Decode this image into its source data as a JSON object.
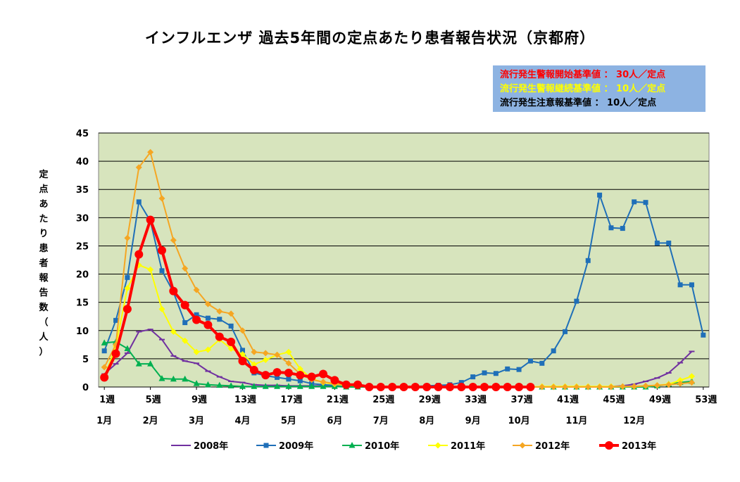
{
  "chart_data": {
    "type": "line",
    "title": "インフルエンザ 過去5年間の定点あたり患者報告状況（京都府）",
    "ylabel": "定点あたり患者報告数（人）",
    "ylim": [
      0,
      45
    ],
    "yticks": [
      "0",
      "5",
      "10",
      "15",
      "20",
      "25",
      "30",
      "35",
      "40",
      "45"
    ],
    "x_week_ticks": [
      "1週",
      "5週",
      "9週",
      "13週",
      "17週",
      "21週",
      "25週",
      "29週",
      "33週",
      "37週",
      "41週",
      "45週",
      "49週",
      "53週"
    ],
    "x_week_tick_values": [
      1,
      5,
      9,
      13,
      17,
      21,
      25,
      29,
      33,
      37,
      41,
      45,
      49,
      53
    ],
    "x_month_ticks": [
      "1月",
      "2月",
      "3月",
      "4月",
      "5月",
      "6月",
      "7月",
      "8月",
      "9月",
      "10月",
      "11月",
      "12月"
    ],
    "x_month_tick_values": [
      1,
      5,
      9,
      13,
      17,
      21,
      25,
      29,
      33,
      37,
      42,
      47
    ],
    "grid": true,
    "legend_position": "bottom",
    "thresholds": [
      {
        "text": "流行発生警報開始基準値 ： 30人／定点",
        "color": "#ff0000"
      },
      {
        "text": "流行発生警報継続基準値 ： 10人／定点",
        "color": "#ffff00"
      },
      {
        "text": "流行発生注意報基準値 ： 10人／定点",
        "color": "#000000"
      }
    ],
    "series": [
      {
        "name": "2008年",
        "color": "#7030a0",
        "marker": "dash",
        "width": 2,
        "x": [
          1,
          2,
          3,
          4,
          5,
          6,
          7,
          8,
          9,
          10,
          11,
          12,
          13,
          14,
          15,
          16,
          17,
          18,
          19,
          20,
          21,
          22,
          23,
          24,
          25,
          26,
          27,
          28,
          29,
          30,
          31,
          32,
          33,
          34,
          35,
          36,
          37,
          38,
          39,
          40,
          41,
          42,
          43,
          44,
          45,
          46,
          47,
          48,
          49,
          50,
          51,
          52
        ],
        "values": [
          2.3,
          4.1,
          6,
          9.8,
          10.2,
          8.4,
          5.5,
          4.6,
          4.2,
          2.8,
          1.8,
          1,
          0.8,
          0.4,
          0.3,
          0.3,
          0.2,
          0.2,
          0.2,
          0.2,
          0.2,
          0.1,
          0.1,
          0.1,
          0,
          0,
          0,
          0,
          0,
          0,
          0,
          0,
          0,
          0,
          0,
          0,
          0,
          0,
          0,
          0,
          0,
          0,
          0,
          0,
          0.1,
          0.2,
          0.5,
          1,
          1.6,
          2.5,
          4.3,
          6.3
        ]
      },
      {
        "name": "2009年",
        "color": "#1f6fb8",
        "marker": "square",
        "width": 2,
        "x": [
          1,
          2,
          3,
          4,
          5,
          6,
          7,
          8,
          9,
          10,
          11,
          12,
          13,
          14,
          15,
          16,
          17,
          18,
          19,
          20,
          21,
          22,
          23,
          24,
          25,
          26,
          27,
          28,
          29,
          30,
          31,
          32,
          33,
          34,
          35,
          36,
          37,
          38,
          39,
          40,
          41,
          42,
          43,
          44,
          45,
          46,
          47,
          48,
          49,
          50,
          51,
          52,
          53
        ],
        "values": [
          6.4,
          11.8,
          19.4,
          32.8,
          29.4,
          20.6,
          16.8,
          11.4,
          12.8,
          12.2,
          12,
          10.8,
          6.5,
          2.5,
          2,
          1.7,
          1.4,
          1.1,
          0.6,
          0.4,
          0.3,
          0.2,
          0.1,
          0.1,
          0.1,
          0.1,
          0.1,
          0.1,
          0.2,
          0.3,
          0.4,
          0.8,
          1.8,
          2.5,
          2.4,
          3.2,
          3.1,
          4.6,
          4.2,
          6.4,
          9.8,
          15.2,
          22.4,
          34,
          28.2,
          28.1,
          32.8,
          32.7,
          25.5,
          25.5,
          18.1,
          18.1,
          9.2
        ]
      },
      {
        "name": "2010年",
        "color": "#00b050",
        "marker": "triangle",
        "width": 2,
        "x": [
          1,
          2,
          3,
          4,
          5,
          6,
          7,
          8,
          9,
          10,
          11,
          12,
          13,
          14,
          15,
          16,
          17,
          18,
          19,
          20,
          21,
          22,
          23,
          24,
          25,
          26,
          27,
          28,
          29,
          30,
          31,
          32,
          33,
          34,
          35,
          36,
          37,
          38,
          39,
          40,
          41,
          42,
          43,
          44,
          45,
          46,
          47,
          48,
          49,
          50,
          51,
          52
        ],
        "values": [
          7.8,
          8,
          6.8,
          4.1,
          4.1,
          1.5,
          1.4,
          1.4,
          0.6,
          0.4,
          0.3,
          0.2,
          0.1,
          0.1,
          0.1,
          0.1,
          0.1,
          0.1,
          0.1,
          0.1,
          0.1,
          0,
          0,
          0,
          0,
          0,
          0,
          0,
          0,
          0,
          0,
          0,
          0,
          0,
          0,
          0,
          0,
          0,
          0,
          0,
          0,
          0,
          0,
          0,
          0,
          0,
          0,
          0,
          0.2,
          0.5,
          0.8,
          1
        ]
      },
      {
        "name": "2011年",
        "color": "#ffff00",
        "marker": "diamond",
        "width": 2,
        "x": [
          1,
          2,
          3,
          4,
          5,
          6,
          7,
          8,
          9,
          10,
          11,
          12,
          13,
          14,
          15,
          16,
          17,
          18,
          19,
          20,
          21,
          22,
          23,
          24,
          25,
          26,
          27,
          28,
          29,
          30,
          31,
          32,
          33,
          34,
          35,
          36,
          37,
          38,
          39,
          40,
          41,
          42,
          43,
          44,
          45,
          46,
          47,
          48,
          49,
          50,
          51,
          52
        ],
        "values": [
          1.8,
          7.2,
          17.5,
          21.6,
          20.8,
          13.8,
          9.8,
          8.2,
          6.2,
          6.6,
          8.4,
          6.8,
          5.8,
          4,
          4.8,
          5.7,
          6.2,
          3.2,
          1.5,
          0.8,
          0.5,
          0.3,
          0.2,
          0.1,
          0.1,
          0,
          0,
          0,
          0,
          0,
          0,
          0,
          0,
          0,
          0,
          0,
          0,
          0,
          0.1,
          0.1,
          0.1,
          0.1,
          0.1,
          0.1,
          0.1,
          0.1,
          0.1,
          0.2,
          0.3,
          0.5,
          1.2,
          1.9
        ]
      },
      {
        "name": "2012年",
        "color": "#f5a623",
        "marker": "diamond",
        "width": 2,
        "x": [
          1,
          2,
          3,
          4,
          5,
          6,
          7,
          8,
          9,
          10,
          11,
          12,
          13,
          14,
          15,
          16,
          17,
          18,
          19,
          20,
          21,
          22,
          23,
          24,
          25,
          26,
          27,
          28,
          29,
          30,
          31,
          32,
          33,
          34,
          35,
          36,
          37,
          38,
          39,
          40,
          41,
          42,
          43,
          44,
          45,
          46,
          47,
          48,
          49,
          50,
          51,
          52
        ],
        "values": [
          3.5,
          7.5,
          26.4,
          38.9,
          41.6,
          33.4,
          26,
          21,
          17.2,
          14.7,
          13.4,
          13,
          10,
          6.2,
          6,
          5.7,
          4.2,
          2.3,
          1.3,
          0.9,
          0.6,
          0.4,
          0.2,
          0.1,
          0.1,
          0,
          0,
          0,
          0,
          0,
          0,
          0,
          0,
          0,
          0,
          0,
          0,
          0,
          0,
          0,
          0,
          0,
          0,
          0,
          0,
          0.1,
          0.1,
          0.2,
          0.3,
          0.4,
          0.6,
          0.8
        ]
      },
      {
        "name": "2013年",
        "color": "#ff0000",
        "marker": "circle",
        "width": 4,
        "x": [
          1,
          2,
          3,
          4,
          5,
          6,
          7,
          8,
          9,
          10,
          11,
          12,
          13,
          14,
          15,
          16,
          17,
          18,
          19,
          20,
          21,
          22,
          23,
          24,
          25,
          26,
          27,
          28,
          29,
          30,
          31,
          32,
          33,
          34,
          35,
          36,
          37,
          38
        ],
        "values": [
          1.7,
          5.9,
          13.8,
          23.5,
          29.6,
          24.2,
          17,
          14.5,
          11.9,
          11,
          8.9,
          8,
          4.6,
          3,
          2.1,
          2.6,
          2.5,
          2.1,
          1.8,
          2.3,
          1.2,
          0.4,
          0.4,
          0,
          0,
          0,
          0,
          0,
          0,
          0,
          0,
          0,
          0,
          0,
          0,
          0,
          0,
          0
        ]
      }
    ]
  }
}
